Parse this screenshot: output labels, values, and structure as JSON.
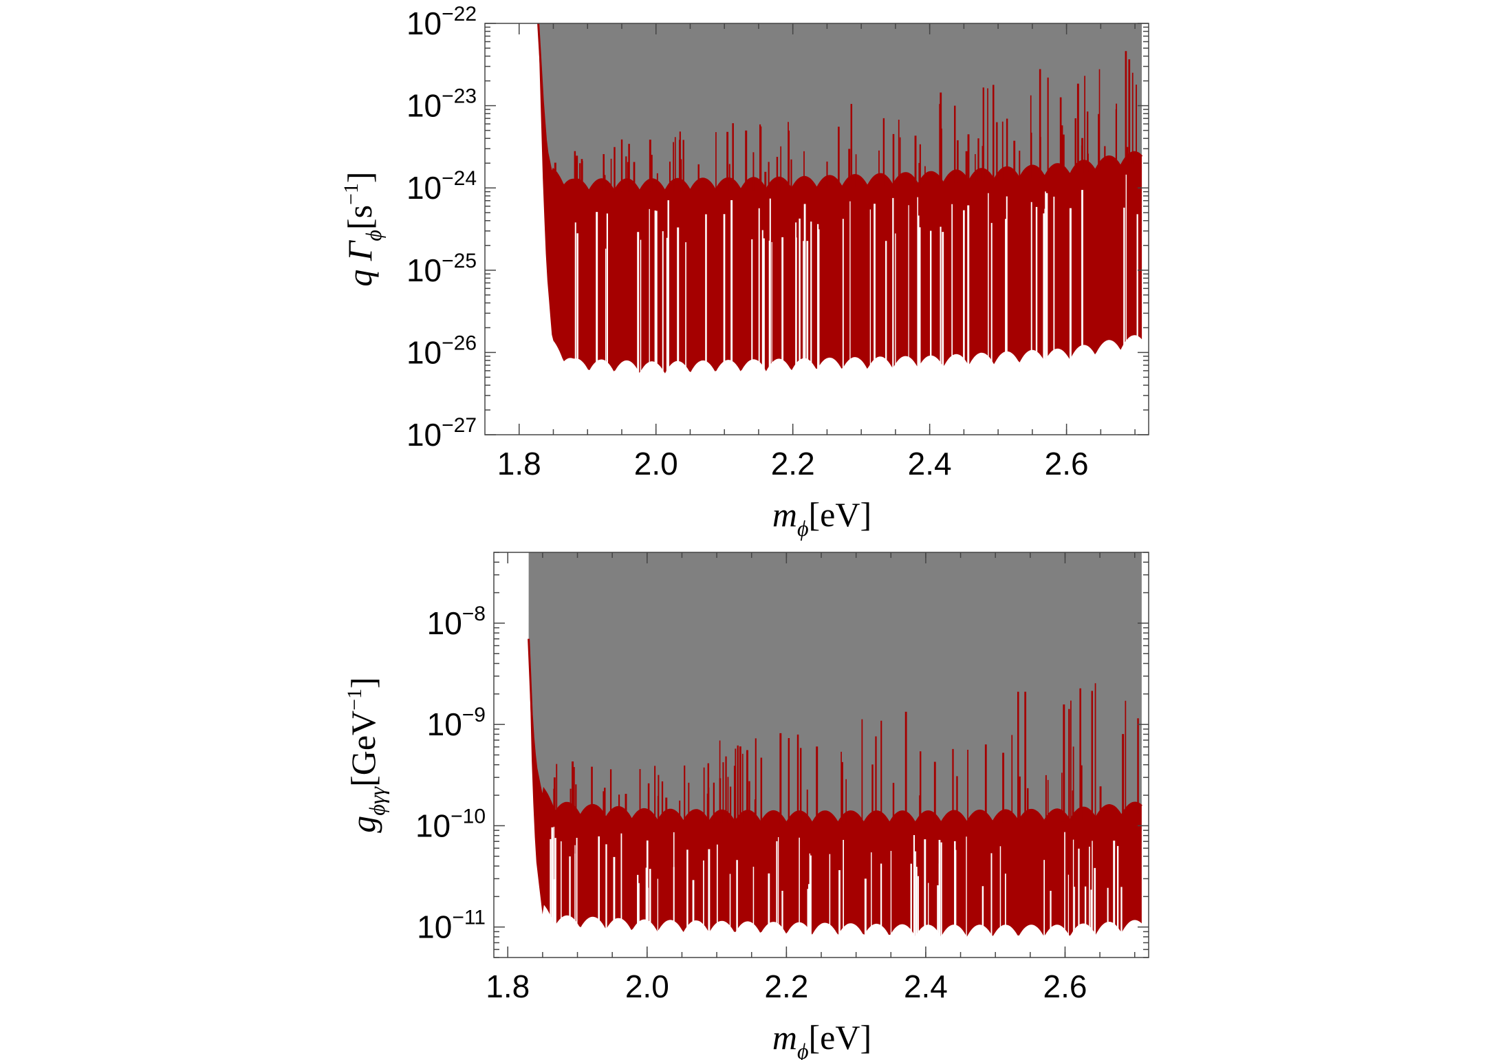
{
  "figure": {
    "background": "#ffffff"
  },
  "chart_data": [
    {
      "type": "area",
      "title": "",
      "xlabel": {
        "main": "m",
        "sub": "ϕ",
        "unit": "[eV]"
      },
      "ylabel": {
        "prefix": "q Γ",
        "sub": "ϕ",
        "unit_open": "[s",
        "unit_exp": "−1",
        "unit_close": "]"
      },
      "xlim": [
        1.75,
        2.72
      ],
      "ylim": [
        1e-27,
        1e-22
      ],
      "yscale": "log",
      "xticks": [
        {
          "value": 1.8,
          "label": "1.8"
        },
        {
          "value": 2.0,
          "label": "2.0"
        },
        {
          "value": 2.2,
          "label": "2.2"
        },
        {
          "value": 2.4,
          "label": "2.4"
        },
        {
          "value": 2.6,
          "label": "2.6"
        }
      ],
      "yticks": [
        {
          "value": 1e-27,
          "base": "10",
          "exp": "−27"
        },
        {
          "value": 1e-26,
          "base": "10",
          "exp": "−26"
        },
        {
          "value": 1e-25,
          "base": "10",
          "exp": "−25"
        },
        {
          "value": 1e-24,
          "base": "10",
          "exp": "−24"
        },
        {
          "value": 1e-23,
          "base": "10",
          "exp": "−23"
        },
        {
          "value": 1e-22,
          "base": "10",
          "exp": "−22"
        }
      ],
      "colors": {
        "excluded": "#808080",
        "band": "#a50000",
        "spikes": "#ffffff"
      },
      "x_range": [
        1.828,
        2.71
      ],
      "band_upper": {
        "x": [
          1.828,
          1.835,
          1.84,
          1.85,
          1.88,
          2.0,
          2.2,
          2.4,
          2.6,
          2.71
        ],
        "y": [
          1e-22,
          1e-23,
          3e-24,
          1.2e-24,
          9e-25,
          9e-25,
          9.5e-25,
          1.1e-24,
          1.4e-24,
          2e-24
        ]
      },
      "band_lower": {
        "x": [
          1.828,
          1.835,
          1.84,
          1.85,
          1.88,
          2.0,
          2.2,
          2.4,
          2.6,
          2.71
        ],
        "y": [
          1e-22,
          1e-24,
          1e-25,
          1e-26,
          6e-27,
          5.5e-27,
          6e-27,
          6.5e-27,
          8e-27,
          1.2e-26
        ]
      },
      "grey_upper_tip": {
        "x": [
          2.56,
          2.71
        ],
        "y": [
          1e-23,
          1.5e-23
        ]
      },
      "scallop_period": 0.037,
      "scallop_depth": 0.15
    },
    {
      "type": "area",
      "title": "",
      "xlabel": {
        "main": "m",
        "sub": "ϕ",
        "unit": "[eV]"
      },
      "ylabel": {
        "prefix": "g",
        "sub": "ϕγγ",
        "unit_open": "[GeV",
        "unit_exp": "−1",
        "unit_close": "]"
      },
      "xlim": [
        1.78,
        2.72
      ],
      "ylim": [
        5e-12,
        5e-08
      ],
      "yscale": "log",
      "xticks": [
        {
          "value": 1.8,
          "label": "1.8"
        },
        {
          "value": 2.0,
          "label": "2.0"
        },
        {
          "value": 2.2,
          "label": "2.2"
        },
        {
          "value": 2.4,
          "label": "2.4"
        },
        {
          "value": 2.6,
          "label": "2.6"
        }
      ],
      "yticks": [
        {
          "value": 1e-11,
          "base": "10",
          "exp": "−11"
        },
        {
          "value": 1e-10,
          "base": "10",
          "exp": "−10"
        },
        {
          "value": 1e-09,
          "base": "10",
          "exp": "−9"
        },
        {
          "value": 1e-08,
          "base": "10",
          "exp": "−8"
        }
      ],
      "colors": {
        "excluded": "#808080",
        "band": "#a50000",
        "spikes": "#ffffff"
      },
      "x_range": [
        1.83,
        2.71
      ],
      "band_upper": {
        "x": [
          1.83,
          1.835,
          1.84,
          1.85,
          1.87,
          2.0,
          2.2,
          2.4,
          2.6,
          2.71
        ],
        "y": [
          7e-09,
          1e-09,
          4e-10,
          1.8e-10,
          1.3e-10,
          1.1e-10,
          1.05e-10,
          1.05e-10,
          1.1e-10,
          1.3e-10
        ]
      },
      "band_lower": {
        "x": [
          1.83,
          1.835,
          1.84,
          1.85,
          1.87,
          2.0,
          2.2,
          2.4,
          2.6,
          2.71
        ],
        "y": [
          7e-09,
          3e-10,
          5e-11,
          1.3e-11,
          1e-11,
          9e-12,
          8.5e-12,
          8e-12,
          8e-12,
          9e-12
        ]
      },
      "grey_upper_tip": {
        "x": [
          2.56,
          2.71
        ],
        "y": [
          3e-10,
          5e-10
        ]
      },
      "scallop_period": 0.037,
      "scallop_depth": 0.12
    }
  ]
}
